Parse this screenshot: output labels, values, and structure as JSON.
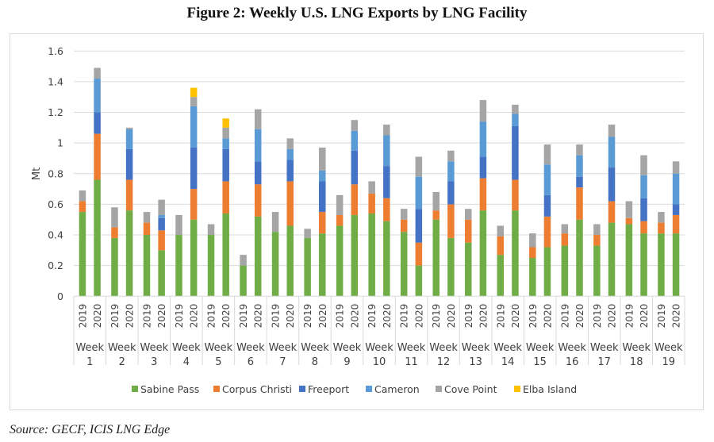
{
  "figure": {
    "title": "Figure 2: Weekly U.S. LNG Exports by LNG Facility",
    "source": "Source: GECF, ICIS LNG Edge"
  },
  "chart_data": {
    "type": "bar",
    "stacked": true,
    "title": "Figure 2: Weekly U.S. LNG Exports by LNG Facility",
    "xlabel": "",
    "ylabel": "Mt",
    "ylim": [
      0,
      1.6
    ],
    "yticks": [
      0,
      0.2,
      0.4,
      0.6,
      0.8,
      1,
      1.2,
      1.4,
      1.6
    ],
    "ytick_labels": [
      "0",
      "0.2",
      "0.4",
      "0.6",
      "0.8",
      "1",
      "1.2",
      "1.4",
      "1.6"
    ],
    "grid": true,
    "legend_position": "bottom",
    "groups": [
      {
        "label_line1": "Week",
        "label_line2": "1"
      },
      {
        "label_line1": "Week",
        "label_line2": "2"
      },
      {
        "label_line1": "Week",
        "label_line2": "3"
      },
      {
        "label_line1": "Week",
        "label_line2": "4"
      },
      {
        "label_line1": "Week",
        "label_line2": "5"
      },
      {
        "label_line1": "Week",
        "label_line2": "6"
      },
      {
        "label_line1": "Week",
        "label_line2": "7"
      },
      {
        "label_line1": "Week",
        "label_line2": "8"
      },
      {
        "label_line1": "Week",
        "label_line2": "9"
      },
      {
        "label_line1": "Week",
        "label_line2": "10"
      },
      {
        "label_line1": "Week",
        "label_line2": "11"
      },
      {
        "label_line1": "Week",
        "label_line2": "12"
      },
      {
        "label_line1": "Week",
        "label_line2": "13"
      },
      {
        "label_line1": "Week",
        "label_line2": "14"
      },
      {
        "label_line1": "Week",
        "label_line2": "15"
      },
      {
        "label_line1": "Week",
        "label_line2": "16"
      },
      {
        "label_line1": "Week",
        "label_line2": "17"
      },
      {
        "label_line1": "Week",
        "label_line2": "18"
      },
      {
        "label_line1": "Week",
        "label_line2": "19"
      }
    ],
    "subcategories": [
      "2019",
      "2020"
    ],
    "categories": [
      "Week 1 2019",
      "Week 1 2020",
      "Week 2 2019",
      "Week 2 2020",
      "Week 3 2019",
      "Week 3 2020",
      "Week 4 2019",
      "Week 4 2020",
      "Week 5 2019",
      "Week 5 2020",
      "Week 6 2019",
      "Week 6 2020",
      "Week 7 2019",
      "Week 7 2020",
      "Week 8 2019",
      "Week 8 2020",
      "Week 9 2019",
      "Week 9 2020",
      "Week 10 2019",
      "Week 10 2020",
      "Week 11 2019",
      "Week 11 2020",
      "Week 12 2019",
      "Week 12 2020",
      "Week 13 2019",
      "Week 13 2020",
      "Week 14 2019",
      "Week 14 2020",
      "Week 15 2019",
      "Week 15 2020",
      "Week 16 2019",
      "Week 16 2020",
      "Week 17 2019",
      "Week 17 2020",
      "Week 18 2019",
      "Week 18 2020",
      "Week 19 2019",
      "Week 19 2020"
    ],
    "series": [
      {
        "name": "Sabine Pass",
        "color": "#70AD47",
        "values": [
          0.55,
          0.76,
          0.38,
          0.56,
          0.4,
          0.3,
          0.4,
          0.5,
          0.4,
          0.54,
          0.2,
          0.52,
          0.42,
          0.46,
          0.38,
          0.41,
          0.46,
          0.53,
          0.54,
          0.49,
          0.42,
          0.2,
          0.5,
          0.38,
          0.35,
          0.56,
          0.27,
          0.56,
          0.25,
          0.32,
          0.33,
          0.5,
          0.33,
          0.48,
          0.47,
          0.41,
          0.41,
          0.41
        ]
      },
      {
        "name": "Corpus Christi",
        "color": "#ED7D31",
        "values": [
          0.07,
          0.3,
          0.07,
          0.2,
          0.08,
          0.13,
          0.0,
          0.2,
          0.0,
          0.21,
          0.0,
          0.21,
          0.0,
          0.29,
          0.0,
          0.14,
          0.07,
          0.2,
          0.13,
          0.15,
          0.08,
          0.15,
          0.06,
          0.22,
          0.15,
          0.21,
          0.12,
          0.2,
          0.07,
          0.2,
          0.08,
          0.21,
          0.07,
          0.14,
          0.04,
          0.08,
          0.07,
          0.12
        ]
      },
      {
        "name": "Freeport",
        "color": "#4472C4",
        "values": [
          0.0,
          0.14,
          0.0,
          0.2,
          0.0,
          0.08,
          0.0,
          0.27,
          0.0,
          0.21,
          0.0,
          0.15,
          0.0,
          0.14,
          0.0,
          0.2,
          0.0,
          0.22,
          0.0,
          0.21,
          0.0,
          0.22,
          0.0,
          0.15,
          0.0,
          0.14,
          0.0,
          0.35,
          0.0,
          0.14,
          0.0,
          0.07,
          0.0,
          0.22,
          0.0,
          0.15,
          0.0,
          0.07
        ]
      },
      {
        "name": "Cameron",
        "color": "#5B9BD5",
        "values": [
          0.0,
          0.22,
          0.0,
          0.13,
          0.0,
          0.02,
          0.0,
          0.27,
          0.0,
          0.07,
          0.0,
          0.21,
          0.0,
          0.07,
          0.0,
          0.07,
          0.0,
          0.13,
          0.0,
          0.2,
          0.0,
          0.21,
          0.0,
          0.13,
          0.0,
          0.23,
          0.0,
          0.08,
          0.0,
          0.2,
          0.0,
          0.14,
          0.0,
          0.2,
          0.0,
          0.15,
          0.0,
          0.2
        ]
      },
      {
        "name": "Cove Point",
        "color": "#A5A5A5",
        "values": [
          0.07,
          0.07,
          0.13,
          0.01,
          0.07,
          0.1,
          0.13,
          0.06,
          0.07,
          0.07,
          0.07,
          0.13,
          0.13,
          0.07,
          0.06,
          0.15,
          0.13,
          0.07,
          0.08,
          0.07,
          0.07,
          0.13,
          0.12,
          0.07,
          0.07,
          0.14,
          0.07,
          0.06,
          0.09,
          0.13,
          0.06,
          0.07,
          0.07,
          0.08,
          0.11,
          0.13,
          0.07,
          0.08
        ]
      },
      {
        "name": "Elba Island",
        "color": "#FFC000",
        "values": [
          0.0,
          0.0,
          0.0,
          0.0,
          0.0,
          0.0,
          0.0,
          0.06,
          0.0,
          0.06,
          0.0,
          0.0,
          0.0,
          0.0,
          0.0,
          0.0,
          0.0,
          0.0,
          0.0,
          0.0,
          0.0,
          0.0,
          0.0,
          0.0,
          0.0,
          0.0,
          0.0,
          0.0,
          0.0,
          0.0,
          0.0,
          0.0,
          0.0,
          0.0,
          0.0,
          0.0,
          0.0,
          0.0
        ]
      }
    ]
  }
}
